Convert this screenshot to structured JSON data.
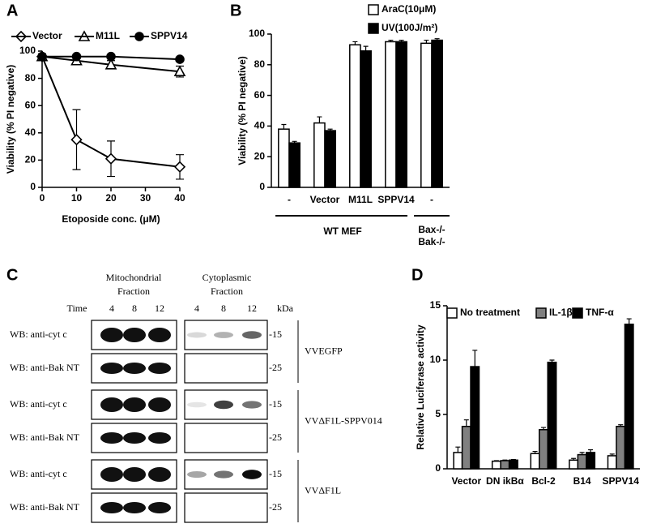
{
  "chart_data": [
    {
      "type": "line",
      "panel": "A",
      "xlabel": "Etoposide conc. (μM)",
      "ylabel": "Viability (% PI negative)",
      "x": [
        0,
        10,
        20,
        40
      ],
      "xlim": [
        0,
        40
      ],
      "xticks": [
        0,
        10,
        20,
        30,
        40
      ],
      "ylim": [
        0,
        100
      ],
      "yticks": [
        0,
        20,
        40,
        60,
        80,
        100
      ],
      "legend": "top",
      "series": [
        {
          "name": "Vector",
          "color": "#000000",
          "marker": "diamond",
          "fill": "open",
          "values": [
            96,
            35,
            21,
            15
          ],
          "errors": [
            2,
            22,
            13,
            9
          ]
        },
        {
          "name": "M11L",
          "color": "#000000",
          "marker": "triangle",
          "fill": "open",
          "values": [
            96,
            93,
            90,
            85
          ],
          "errors": [
            2,
            3,
            3,
            4
          ]
        },
        {
          "name": "SPPV14",
          "color": "#000000",
          "marker": "circle",
          "fill": "filled",
          "values": [
            96,
            96,
            96,
            94
          ],
          "errors": [
            1,
            1,
            1,
            1
          ]
        }
      ]
    },
    {
      "type": "bar",
      "panel": "B",
      "ylabel": "Viability (% PI negative)",
      "categories": [
        "-",
        "Vector",
        "M11L",
        "SPPV14",
        "-"
      ],
      "ylim": [
        0,
        100
      ],
      "yticks": [
        0,
        20,
        40,
        60,
        80,
        100
      ],
      "legend": "top-right",
      "annotations": [
        "WT MEF",
        "Bax-/-",
        "Bak-/-"
      ],
      "series": [
        {
          "name": "AraC(10μM)",
          "color": "#ffffff",
          "values": [
            38,
            42,
            93,
            95,
            94
          ],
          "errors": [
            3,
            4,
            2,
            1,
            2
          ]
        },
        {
          "name": "UV(100J/m²)",
          "color": "#000000",
          "values": [
            29,
            37,
            89,
            95,
            96
          ],
          "errors": [
            1,
            1,
            3,
            1,
            1
          ]
        }
      ]
    },
    {
      "type": "bar",
      "panel": "D",
      "ylabel": "Relative Luciferase activity",
      "categories": [
        "Vector",
        "DN ikBα",
        "Bcl-2",
        "B14",
        "SPPV14"
      ],
      "ylim": [
        0,
        15
      ],
      "yticks": [
        0,
        5,
        10,
        15
      ],
      "legend": "top",
      "series": [
        {
          "name": "No treatment",
          "color": "#ffffff",
          "values": [
            1.5,
            0.7,
            1.4,
            0.8,
            1.2
          ],
          "errors": [
            0.5,
            0.05,
            0.2,
            0.15,
            0.15
          ]
        },
        {
          "name": "IL-1β",
          "color": "#808080",
          "values": [
            3.9,
            0.75,
            3.6,
            1.3,
            3.9
          ],
          "errors": [
            0.6,
            0.05,
            0.2,
            0.2,
            0.15
          ]
        },
        {
          "name": "TNF-α",
          "color": "#000000",
          "values": [
            9.4,
            0.8,
            9.8,
            1.5,
            13.3
          ],
          "errors": [
            1.5,
            0.05,
            0.2,
            0.25,
            0.5
          ]
        }
      ]
    }
  ],
  "blot": {
    "panel": "C",
    "headers": [
      [
        "Mitochondrial",
        "Fraction"
      ],
      [
        "Cytoplasmic",
        "Fraction"
      ]
    ],
    "time_label": "Time",
    "times": [
      "4",
      "8",
      "12"
    ],
    "unit": "kDa",
    "rows": [
      "WB: anti-cyt c",
      "WB: anti-Bak NT",
      "WB: anti-cyt c",
      "WB: anti-Bak NT",
      "WB: anti-cyt c",
      "WB: anti-Bak NT"
    ],
    "markers": [
      "-15",
      "-25"
    ],
    "groups": [
      "VVEGFP",
      "VVΔF1L-SPPV014",
      "VVΔF1L"
    ]
  }
}
